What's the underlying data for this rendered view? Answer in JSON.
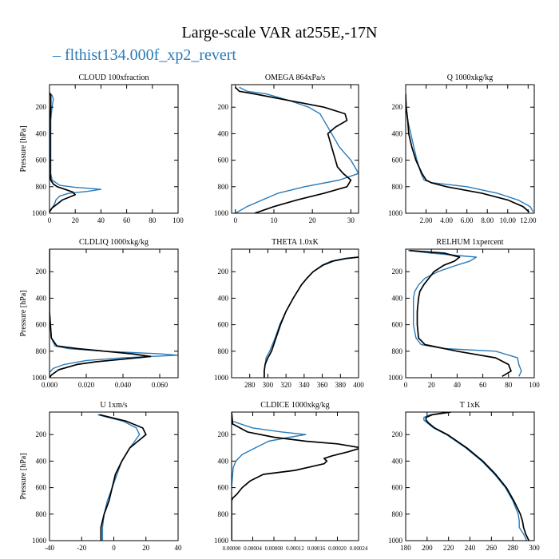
{
  "figure": {
    "title": "Large-scale VAR at255E,-17N",
    "legend_label": "flthist134.000f_xp2_revert",
    "colors": {
      "series_blue": "#2b7bb9",
      "series_black": "#000000",
      "axes": "#000000"
    }
  },
  "chart_data": [
    {
      "type": "line",
      "title": "CLOUD  100xfraction",
      "ylabel": "Pressure [hPa]",
      "xlim": [
        0,
        100
      ],
      "ylim": [
        1000,
        30
      ],
      "xticks": [
        0,
        20,
        40,
        60,
        80,
        100
      ],
      "xtick_labels": [
        "0",
        "20",
        "40",
        "60",
        "80",
        "100"
      ],
      "yticks": [
        200,
        400,
        600,
        800,
        1000
      ],
      "series": [
        {
          "color": "#2b7bb9",
          "p": [
            90,
            110,
            140,
            200,
            300,
            400,
            500,
            600,
            700,
            750,
            790,
            805,
            820,
            835,
            850,
            870,
            900,
            930,
            960,
            990,
            1000
          ],
          "x": [
            0,
            2,
            3,
            2,
            1,
            1,
            1,
            1,
            1,
            2,
            8,
            20,
            40,
            30,
            15,
            8,
            5,
            4,
            2,
            0,
            0
          ]
        },
        {
          "color": "#000000",
          "p": [
            90,
            110,
            140,
            200,
            300,
            400,
            500,
            600,
            700,
            750,
            780,
            800,
            820,
            840,
            860,
            880,
            900,
            930,
            960,
            990,
            1000
          ],
          "x": [
            0,
            1,
            1,
            1,
            0.5,
            0.5,
            0.5,
            0.5,
            0.5,
            1,
            3,
            6,
            12,
            18,
            20,
            15,
            10,
            6,
            2,
            0,
            0
          ]
        }
      ]
    },
    {
      "type": "line",
      "title": "OMEGA  864xPa/s",
      "ylabel": "",
      "xlim": [
        -1,
        32
      ],
      "ylim": [
        1000,
        30
      ],
      "xticks": [
        0,
        10,
        20,
        30
      ],
      "xtick_labels": [
        "0",
        "10",
        "20",
        "30"
      ],
      "yticks": [
        200,
        400,
        600,
        800,
        1000
      ],
      "series": [
        {
          "color": "#2b7bb9",
          "p": [
            50,
            80,
            100,
            150,
            200,
            250,
            300,
            350,
            400,
            450,
            500,
            550,
            600,
            650,
            700,
            750,
            800,
            850,
            900,
            950,
            1000
          ],
          "x": [
            1,
            3,
            8,
            14,
            19,
            22,
            23,
            24,
            25,
            26,
            27,
            28.5,
            30,
            31,
            32,
            27,
            18,
            11,
            7,
            3,
            0
          ]
        },
        {
          "color": "#000000",
          "p": [
            50,
            80,
            100,
            150,
            200,
            250,
            300,
            350,
            400,
            450,
            500,
            550,
            600,
            650,
            700,
            750,
            800,
            850,
            900,
            950,
            1000
          ],
          "x": [
            0,
            1,
            5,
            14,
            23,
            28.5,
            29,
            26,
            24,
            24.5,
            25,
            25.5,
            26,
            26.5,
            28,
            30,
            29,
            23,
            16,
            10,
            5
          ]
        }
      ]
    },
    {
      "type": "line",
      "title": "Q  1000xkg/kg",
      "ylabel": "",
      "xlim": [
        0,
        12.6
      ],
      "ylim": [
        1000,
        30
      ],
      "xticks": [
        2,
        4,
        6,
        8,
        10,
        12
      ],
      "xtick_labels": [
        "2.00",
        "4.00",
        "6.00",
        "8.00",
        "10.00",
        "12.00"
      ],
      "yticks": [
        200,
        400,
        600,
        800,
        1000
      ],
      "series": [
        {
          "color": "#2b7bb9",
          "p": [
            100,
            200,
            300,
            400,
            500,
            600,
            650,
            700,
            750,
            770,
            800,
            850,
            900,
            950,
            990
          ],
          "x": [
            0,
            0.05,
            0.2,
            0.5,
            0.8,
            1.1,
            1.3,
            1.5,
            1.8,
            2.6,
            6,
            9,
            11,
            12.2,
            12.5
          ]
        },
        {
          "color": "#000000",
          "p": [
            100,
            200,
            300,
            400,
            500,
            600,
            650,
            700,
            750,
            770,
            800,
            850,
            900,
            950,
            990
          ],
          "x": [
            0,
            0.05,
            0.2,
            0.3,
            0.6,
            1,
            1.3,
            1.6,
            2,
            2.5,
            4,
            7.5,
            10,
            11.5,
            12.1
          ]
        }
      ]
    },
    {
      "type": "line",
      "title": "CLDLIQ  1000xkg/kg",
      "ylabel": "Pressure [hPa]",
      "xlim": [
        0,
        0.07
      ],
      "ylim": [
        1000,
        30
      ],
      "xticks": [
        0,
        0.02,
        0.04,
        0.06
      ],
      "xtick_labels": [
        "0.000",
        "0.020",
        "0.040",
        "0.060"
      ],
      "yticks": [
        200,
        400,
        600,
        800,
        1000
      ],
      "series": [
        {
          "color": "#2b7bb9",
          "p": [
            30,
            500,
            700,
            760,
            780,
            800,
            820,
            830,
            850,
            870,
            900,
            930,
            960,
            1000
          ],
          "x": [
            0,
            0,
            0.001,
            0.003,
            0.01,
            0.03,
            0.06,
            0.07,
            0.04,
            0.02,
            0.008,
            0.002,
            0,
            0
          ]
        },
        {
          "color": "#000000",
          "p": [
            30,
            500,
            700,
            760,
            780,
            800,
            820,
            840,
            860,
            880,
            900,
            940,
            980,
            1000
          ],
          "x": [
            0,
            0,
            0.001,
            0.004,
            0.015,
            0.03,
            0.045,
            0.055,
            0.04,
            0.025,
            0.015,
            0.005,
            0.001,
            0
          ]
        }
      ]
    },
    {
      "type": "line",
      "title": "THETA  1.0xK",
      "ylabel": "",
      "xlim": [
        260,
        400
      ],
      "ylim": [
        1000,
        30
      ],
      "xticks": [
        280,
        300,
        320,
        340,
        360,
        380,
        400
      ],
      "xtick_labels": [
        "280",
        "300",
        "320",
        "340",
        "360",
        "380",
        "400"
      ],
      "yticks": [
        200,
        400,
        600,
        800,
        1000
      ],
      "series": [
        {
          "color": "#2b7bb9",
          "p": [
            90,
            100,
            120,
            150,
            200,
            250,
            300,
            400,
            500,
            600,
            700,
            800,
            850,
            900,
            950,
            1000
          ],
          "x": [
            400,
            385,
            370,
            360,
            350,
            343,
            337,
            328,
            320,
            313,
            308,
            302,
            298,
            297,
            296,
            296
          ]
        },
        {
          "color": "#000000",
          "p": [
            90,
            100,
            120,
            150,
            200,
            250,
            300,
            400,
            500,
            600,
            700,
            800,
            850,
            900,
            950,
            1000
          ],
          "x": [
            400,
            387,
            372,
            361,
            350,
            343,
            337,
            328,
            320,
            314,
            309,
            304,
            300,
            297,
            296,
            296
          ]
        }
      ]
    },
    {
      "type": "line",
      "title": "RELHUM  1xpercent",
      "ylabel": "",
      "xlim": [
        0,
        100
      ],
      "ylim": [
        1000,
        30
      ],
      "xticks": [
        0,
        20,
        40,
        60,
        80,
        100
      ],
      "xtick_labels": [
        "0",
        "20",
        "40",
        "60",
        "80",
        "100"
      ],
      "yticks": [
        200,
        400,
        600,
        800,
        1000
      ],
      "series": [
        {
          "color": "#2b7bb9",
          "p": [
            40,
            60,
            90,
            120,
            150,
            200,
            250,
            300,
            350,
            400,
            500,
            600,
            700,
            750,
            780,
            800,
            850,
            900,
            950,
            990
          ],
          "x": [
            2,
            20,
            55,
            50,
            40,
            25,
            15,
            10,
            7,
            6,
            6,
            6,
            8,
            12,
            30,
            70,
            87,
            88,
            90,
            88
          ]
        },
        {
          "color": "#000000",
          "p": [
            40,
            60,
            90,
            120,
            150,
            200,
            250,
            300,
            350,
            400,
            500,
            600,
            700,
            750,
            800,
            850,
            900,
            950,
            990
          ],
          "x": [
            3,
            30,
            42,
            38,
            30,
            22,
            18,
            14,
            11,
            10,
            9,
            9,
            10,
            15,
            40,
            70,
            80,
            82,
            75
          ]
        }
      ]
    },
    {
      "type": "line",
      "title": "U  1xm/s",
      "ylabel": "Pressure [hPa]",
      "xlim": [
        -40,
        40
      ],
      "ylim": [
        1000,
        30
      ],
      "xticks": [
        -40,
        -20,
        0,
        20,
        40
      ],
      "xtick_labels": [
        "-40",
        "-20",
        "0",
        "20",
        "40"
      ],
      "yticks": [
        200,
        400,
        600,
        800,
        1000
      ],
      "series": [
        {
          "color": "#2b7bb9",
          "p": [
            50,
            100,
            150,
            200,
            250,
            300,
            400,
            500,
            600,
            700,
            800,
            900,
            1000
          ],
          "x": [
            -10,
            6,
            14,
            16,
            13,
            10,
            5,
            2,
            -1,
            -4,
            -6,
            -7,
            -7
          ]
        },
        {
          "color": "#000000",
          "p": [
            50,
            100,
            150,
            200,
            250,
            300,
            400,
            500,
            600,
            700,
            800,
            900,
            1000
          ],
          "x": [
            -9,
            8,
            18,
            20,
            15,
            10,
            5,
            1,
            -1,
            -3,
            -6,
            -8,
            -8
          ]
        }
      ]
    },
    {
      "type": "line",
      "title": "CLDICE  1000xkg/kg",
      "ylabel": "",
      "xlim": [
        0,
        0.00024
      ],
      "ylim": [
        1000,
        30
      ],
      "xticks": [
        0,
        4e-05,
        8e-05,
        0.00012,
        0.00016,
        0.0002,
        0.00024
      ],
      "xtick_labels": [
        "0.00000",
        "0.00004",
        "0.00008",
        "0.00012",
        "0.00016",
        "0.00020",
        "0.00024"
      ],
      "yticks": [
        200,
        400,
        600,
        800,
        1000
      ],
      "series": [
        {
          "color": "#2b7bb9",
          "p": [
            30,
            100,
            150,
            180,
            200,
            220,
            250,
            300,
            350,
            400,
            450,
            600,
            1000
          ],
          "x": [
            0,
            2e-06,
            4e-05,
            9.5e-05,
            0.00014,
            0.00011,
            7e-05,
            4.5e-05,
            2e-05,
            8e-06,
            3e-06,
            0,
            0
          ]
        },
        {
          "color": "#000000",
          "p": [
            30,
            120,
            180,
            220,
            250,
            270,
            300,
            330,
            360,
            380,
            400,
            420,
            470,
            500,
            550,
            600,
            650,
            680,
            700,
            1000
          ],
          "x": [
            0,
            2e-06,
            3e-05,
            8e-05,
            0.00014,
            0.0002,
            0.000245,
            0.00022,
            0.00019,
            0.000175,
            0.00018,
            0.000175,
            0.00012,
            6e-05,
            3.5e-05,
            2e-05,
            1e-05,
            2e-06,
            0,
            0
          ]
        }
      ]
    },
    {
      "type": "line",
      "title": "T  1xK",
      "ylabel": "",
      "xlim": [
        180,
        300
      ],
      "ylim": [
        1000,
        30
      ],
      "xticks": [
        180,
        200,
        220,
        240,
        260,
        280,
        300
      ],
      "xtick_labels": [
        "180",
        "200",
        "220",
        "240",
        "260",
        "280",
        "300"
      ],
      "yticks": [
        200,
        400,
        600,
        800,
        1000
      ],
      "series": [
        {
          "color": "#2b7bb9",
          "p": [
            30,
            50,
            70,
            90,
            110,
            150,
            200,
            300,
            400,
            500,
            600,
            700,
            800,
            850,
            900,
            950,
            1000
          ],
          "x": [
            220,
            203,
            197,
            197,
            200,
            206,
            218,
            236,
            251,
            263,
            273,
            280,
            285,
            286,
            286,
            290,
            293
          ]
        },
        {
          "color": "#000000",
          "p": [
            30,
            50,
            70,
            90,
            110,
            150,
            200,
            300,
            400,
            500,
            600,
            700,
            800,
            850,
            900,
            950,
            1000
          ],
          "x": [
            222,
            205,
            199,
            199,
            201,
            207,
            219,
            237,
            252,
            264,
            274,
            281,
            287,
            289,
            290,
            292,
            295
          ]
        }
      ]
    }
  ]
}
